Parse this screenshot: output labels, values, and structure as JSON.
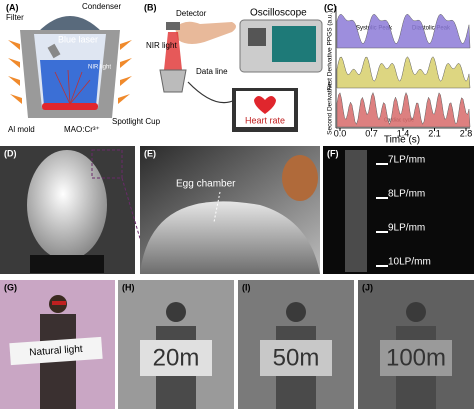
{
  "panels": {
    "A": {
      "label": "(A)",
      "filter": "Filter",
      "condenser": "Condenser",
      "laser": "Blue laser",
      "nir": "NIR light",
      "mold": "Al mold",
      "phosphor": "MAO:Cr³⁺",
      "cup": "Spotlight Cup"
    },
    "B": {
      "label": "(B)",
      "detector": "Detector",
      "nir": "NIR light",
      "line": "Data line",
      "scope": "Oscilloscope",
      "heart": "Heart rate"
    },
    "C": {
      "label": "(C)",
      "ylabels": [
        "PPGS (a.u.)",
        "First Derivative",
        "Second Derivative"
      ],
      "systolic": "Systolic Peak",
      "diastolic": "Diastolic Peak",
      "cycle": "Cardiac cycle",
      "xlabel": "Time (s)",
      "xticks": [
        "0.0",
        "0.7",
        "1.4",
        "2.1",
        "2.8"
      ]
    },
    "D": {
      "label": "(D)"
    },
    "E": {
      "label": "(E)",
      "chamber": "Egg chamber"
    },
    "F": {
      "label": "(F)",
      "lines": [
        "7LP/mm",
        "8LP/mm",
        "9LP/mm",
        "10LP/mm"
      ]
    },
    "G": {
      "label": "(G)",
      "sign": "Natural light"
    },
    "H": {
      "label": "(H)",
      "sign": "20m"
    },
    "I": {
      "label": "(I)",
      "sign": "50m"
    },
    "J": {
      "label": "(J)",
      "sign": "100m"
    }
  }
}
